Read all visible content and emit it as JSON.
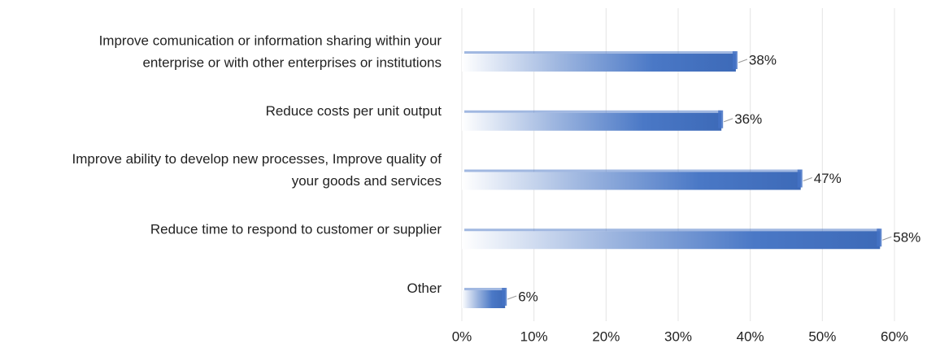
{
  "chart_data": {
    "type": "bar",
    "orientation": "horizontal",
    "categories": [
      "Improve comunication or information sharing within your\nenterprise or with other enterprises or institutions",
      "Reduce costs per unit output",
      "Improve ability to develop new processes, Improve quality of\nyour goods and services",
      "Reduce time to respond to customer or supplier",
      "Other"
    ],
    "values": [
      38,
      36,
      47,
      58,
      6
    ],
    "value_labels": [
      "38%",
      "36%",
      "47%",
      "58%",
      "6%"
    ],
    "color": "#4472c4",
    "xlim": [
      0,
      60
    ],
    "xticks": [
      {
        "value": 0,
        "label": "0%"
      },
      {
        "value": 10,
        "label": "10%"
      },
      {
        "value": 20,
        "label": "20%"
      },
      {
        "value": 30,
        "label": "30%"
      },
      {
        "value": 40,
        "label": "40%"
      },
      {
        "value": 50,
        "label": "50%"
      },
      {
        "value": 60,
        "label": "60%"
      }
    ],
    "grid": true
  }
}
